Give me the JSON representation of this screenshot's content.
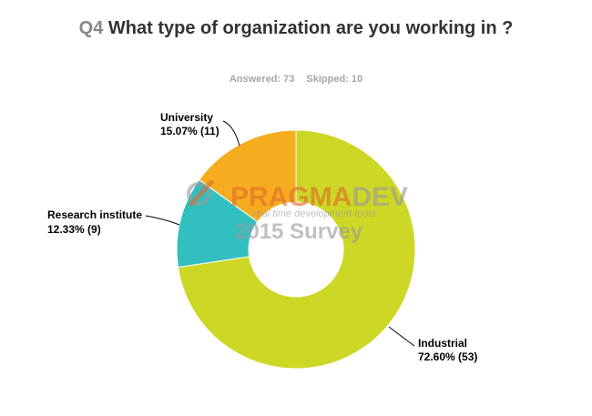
{
  "header": {
    "question_number": "Q4",
    "question_text": "What type of organization are you working in ?",
    "answered": "Answered: 73",
    "skipped": "Skipped: 10"
  },
  "watermark": {
    "brand_left": "PRAGMA",
    "brand_right": "DEV",
    "tagline": "real time development tools",
    "survey": "2015 Survey",
    "brand_color": "#e06a2c",
    "survey_color": "#9a9a9a"
  },
  "chart_data": {
    "type": "pie",
    "variant": "donut",
    "title": "What type of organization are you working in ?",
    "categories": [
      "Industrial",
      "Research institute",
      "University"
    ],
    "values": [
      72.6,
      12.33,
      15.07
    ],
    "counts": [
      53,
      9,
      11
    ],
    "labels": [
      {
        "name": "Industrial",
        "value": "72.60% (53)"
      },
      {
        "name": "Research institute",
        "value": "12.33% (9)"
      },
      {
        "name": "University",
        "value": "15.07% (11)"
      }
    ],
    "colors": [
      "#cdd725",
      "#32bfc0",
      "#f6ac1f"
    ],
    "start_angle_deg": 0,
    "direction": "clockwise",
    "legend": "none",
    "grid": false
  }
}
